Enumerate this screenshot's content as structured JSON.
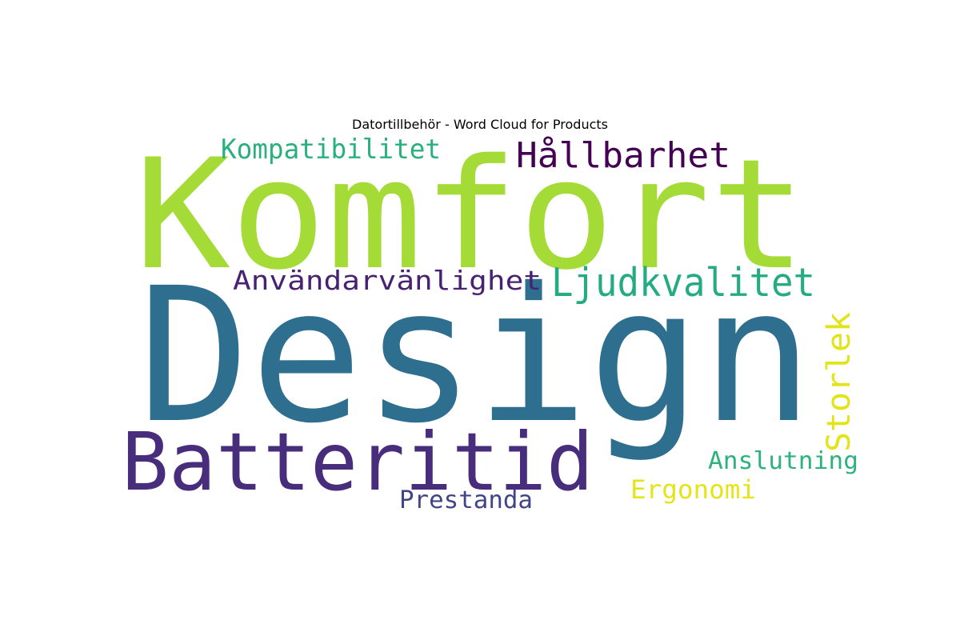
{
  "title": "Datortillbehör - Word Cloud for Products",
  "words": [
    {
      "text": "Komfort",
      "color": "#a5db36"
    },
    {
      "text": "Design",
      "color": "#2e6e8e"
    },
    {
      "text": "Batteritid",
      "color": "#472d7b"
    },
    {
      "text": "Kompatibilitet",
      "color": "#2ab07f"
    },
    {
      "text": "Hållbarhet",
      "color": "#440154"
    },
    {
      "text": "Användarvänlighet",
      "color": "#482173"
    },
    {
      "text": "Ljudkvalitet",
      "color": "#25ab82"
    },
    {
      "text": "Storlek",
      "color": "#e2e418"
    },
    {
      "text": "Anslutning",
      "color": "#2db27d"
    },
    {
      "text": "Ergonomi",
      "color": "#e5e419"
    },
    {
      "text": "Prestanda",
      "color": "#414487"
    }
  ]
}
